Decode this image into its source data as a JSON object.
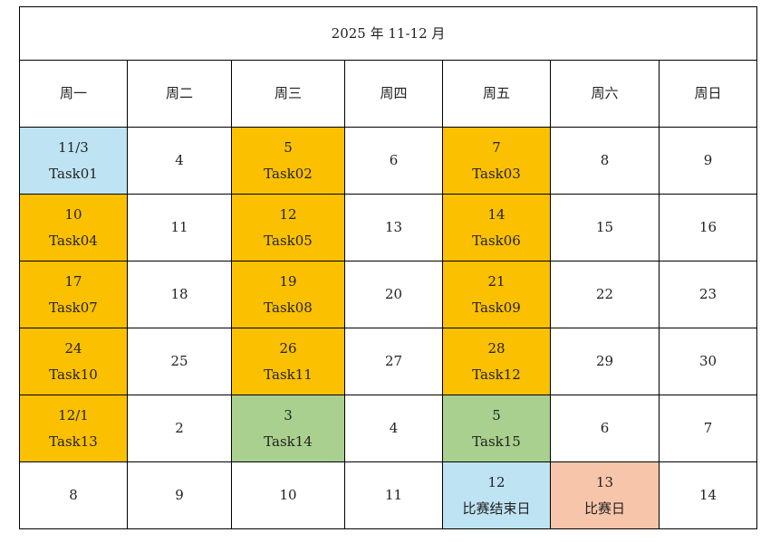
{
  "title": "2025 年  11-12 月",
  "weekdays": [
    "周一",
    "周二",
    "周三",
    "周四",
    "周五",
    "周六",
    "周日"
  ],
  "colors": {
    "blue": "#bee3f3",
    "orange": "#fbc000",
    "green": "#a9d08e",
    "salmon": "#f7c5a9",
    "white": "#ffffff"
  },
  "weeks": [
    [
      {
        "date": "11/3",
        "label": "Task01",
        "color": "blue"
      },
      {
        "date": "4"
      },
      {
        "date": "5",
        "label": "Task02",
        "color": "orange"
      },
      {
        "date": "6"
      },
      {
        "date": "7",
        "label": "Task03",
        "color": "orange"
      },
      {
        "date": "8"
      },
      {
        "date": "9"
      }
    ],
    [
      {
        "date": "10",
        "label": "Task04",
        "color": "orange"
      },
      {
        "date": "11"
      },
      {
        "date": "12",
        "label": "Task05",
        "color": "orange"
      },
      {
        "date": "13"
      },
      {
        "date": "14",
        "label": "Task06",
        "color": "orange"
      },
      {
        "date": "15"
      },
      {
        "date": "16"
      }
    ],
    [
      {
        "date": "17",
        "label": "Task07",
        "color": "orange"
      },
      {
        "date": "18"
      },
      {
        "date": "19",
        "label": "Task08",
        "color": "orange"
      },
      {
        "date": "20"
      },
      {
        "date": "21",
        "label": "Task09",
        "color": "orange"
      },
      {
        "date": "22"
      },
      {
        "date": "23"
      }
    ],
    [
      {
        "date": "24",
        "label": "Task10",
        "color": "orange"
      },
      {
        "date": "25"
      },
      {
        "date": "26",
        "label": "Task11",
        "color": "orange"
      },
      {
        "date": "27"
      },
      {
        "date": "28",
        "label": "Task12",
        "color": "orange"
      },
      {
        "date": "29"
      },
      {
        "date": "30"
      }
    ],
    [
      {
        "date": "12/1",
        "label": "Task13",
        "color": "orange"
      },
      {
        "date": "2"
      },
      {
        "date": "3",
        "label": "Task14",
        "color": "green"
      },
      {
        "date": "4"
      },
      {
        "date": "5",
        "label": "Task15",
        "color": "green"
      },
      {
        "date": "6"
      },
      {
        "date": "7"
      }
    ],
    [
      {
        "date": "8"
      },
      {
        "date": "9"
      },
      {
        "date": "10"
      },
      {
        "date": "11"
      },
      {
        "date": "12",
        "label": "比赛结束日",
        "color": "blue"
      },
      {
        "date": "13",
        "label": "比赛日",
        "color": "salmon"
      },
      {
        "date": "14"
      }
    ]
  ]
}
